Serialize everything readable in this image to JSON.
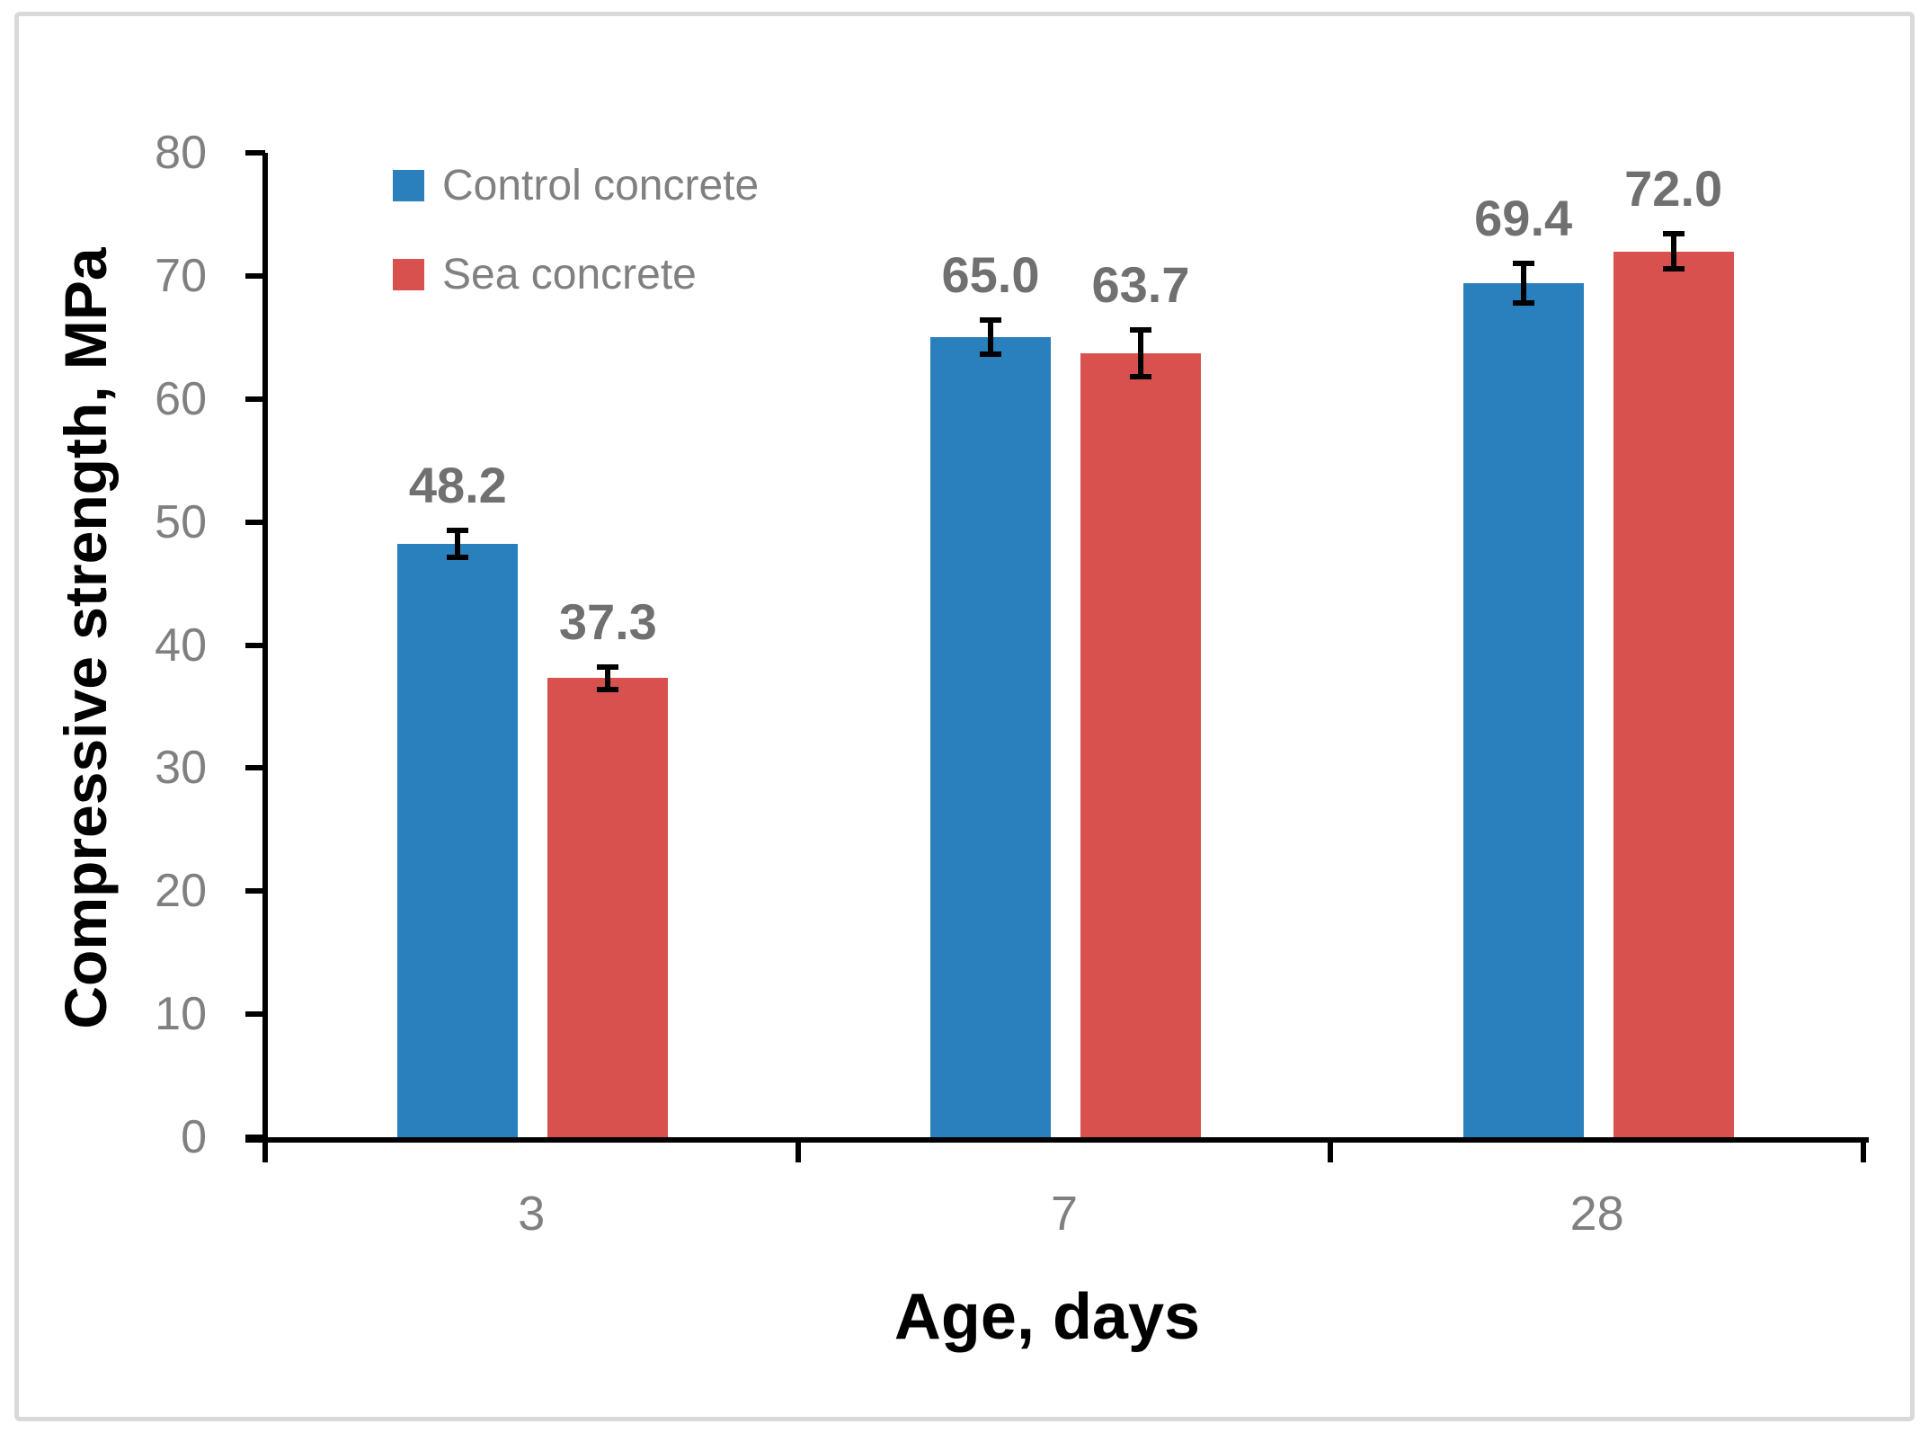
{
  "figure": {
    "background": "#FFFFFF",
    "frame_border_color": "#D9D9D9"
  },
  "styles": {
    "axis_color": "#000000",
    "tick_label_color": "#808080",
    "data_label_color": "#707070",
    "legend_text_color": "#808080",
    "axis_title_color": "#000000"
  },
  "chart_data": {
    "type": "bar",
    "title": "",
    "xlabel": "Age, days",
    "ylabel": "Compressive strength, MPa",
    "categories": [
      "3",
      "7",
      "28"
    ],
    "series": [
      {
        "name": "Control concrete",
        "color": "#2A80BD",
        "values": [
          48.2,
          65.0,
          69.4
        ],
        "labels": [
          "48.2",
          "65.0",
          "69.4"
        ],
        "errors": [
          1.1,
          1.4,
          1.6
        ]
      },
      {
        "name": "Sea concrete",
        "color": "#D9514E",
        "values": [
          37.3,
          63.7,
          72.0
        ],
        "labels": [
          "37.3",
          "63.7",
          "72.0"
        ],
        "errors": [
          0.9,
          1.9,
          1.4
        ]
      }
    ],
    "ylim": [
      0,
      80
    ],
    "ytick_step": 10,
    "yticks": [
      0,
      10,
      20,
      30,
      40,
      50,
      60,
      70,
      80
    ],
    "grid": false,
    "error_bars": true,
    "legend_position": "top-left-inside",
    "value_labels_shown": true
  }
}
